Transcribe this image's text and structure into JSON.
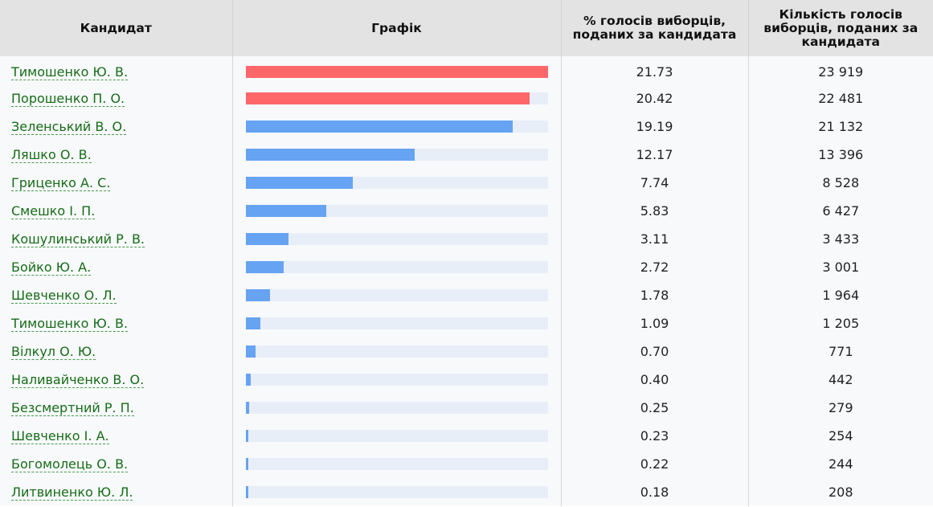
{
  "table": {
    "headers": {
      "candidate": "Кандидат",
      "chart": "Графік",
      "percent": "% голосів виборців, поданих за кандидата",
      "count": "Кількість голосів виборців, поданих за кандидата"
    },
    "colors": {
      "leader_bar": "#fd676a",
      "other_bar": "#66a3f2",
      "track": "#e8eef8",
      "link": "#176c17"
    },
    "chart_max_percent": 21.73,
    "rows": [
      {
        "name": "Тимошенко Ю. В.",
        "percent": "21.73",
        "votes": "23 919",
        "highlight": true
      },
      {
        "name": "Порошенко П. О.",
        "percent": "20.42",
        "votes": "22 481",
        "highlight": true
      },
      {
        "name": "Зеленський В. О.",
        "percent": "19.19",
        "votes": "21 132",
        "highlight": false
      },
      {
        "name": "Ляшко О. В.",
        "percent": "12.17",
        "votes": "13 396",
        "highlight": false
      },
      {
        "name": "Гриценко А. С.",
        "percent": "7.74",
        "votes": "8 528",
        "highlight": false
      },
      {
        "name": "Смешко І. П.",
        "percent": "5.83",
        "votes": "6 427",
        "highlight": false
      },
      {
        "name": "Кошулинський Р. В.",
        "percent": "3.11",
        "votes": "3 433",
        "highlight": false
      },
      {
        "name": "Бойко Ю. А.",
        "percent": "2.72",
        "votes": "3 001",
        "highlight": false
      },
      {
        "name": "Шевченко О. Л.",
        "percent": "1.78",
        "votes": "1 964",
        "highlight": false
      },
      {
        "name": "Тимошенко Ю. В.",
        "percent": "1.09",
        "votes": "1 205",
        "highlight": false
      },
      {
        "name": "Вілкул О. Ю.",
        "percent": "0.70",
        "votes": "771",
        "highlight": false
      },
      {
        "name": "Наливайченко В. О.",
        "percent": "0.40",
        "votes": "442",
        "highlight": false
      },
      {
        "name": "Безсмертний Р. П.",
        "percent": "0.25",
        "votes": "279",
        "highlight": false
      },
      {
        "name": "Шевченко І. А.",
        "percent": "0.23",
        "votes": "254",
        "highlight": false
      },
      {
        "name": "Богомолець О. В.",
        "percent": "0.22",
        "votes": "244",
        "highlight": false
      },
      {
        "name": "Литвиненко Ю. Л.",
        "percent": "0.18",
        "votes": "208",
        "highlight": false
      }
    ]
  }
}
